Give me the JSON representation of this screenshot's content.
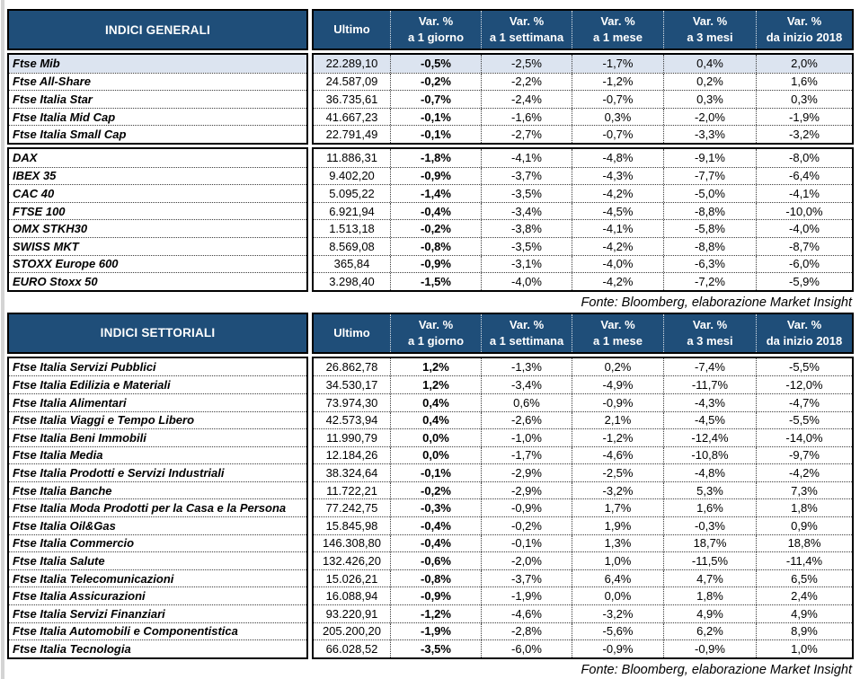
{
  "colors": {
    "header_bg": "#1F4E79",
    "header_text": "#FFFFFF",
    "row_highlight": "#DCE4F0",
    "border": "#000000"
  },
  "columns": [
    {
      "label": "Ultimo"
    },
    {
      "label": "Var. %",
      "sub": "a 1 giorno"
    },
    {
      "label": "Var. %",
      "sub": "a 1 settimana"
    },
    {
      "label": "Var. %",
      "sub": "a 1 mese"
    },
    {
      "label": "Var. %",
      "sub": "a 3 mesi"
    },
    {
      "label": "Var. %",
      "sub": "da inizio 2018"
    }
  ],
  "table1": {
    "title": "INDICI GENERALI",
    "source": "Fonte: Bloomberg, elaborazione Market Insight",
    "highlight_first_row": true,
    "blocks": [
      [
        {
          "name": "Ftse Mib",
          "values": [
            "22.289,10",
            "-0,5%",
            "-2,5%",
            "-1,7%",
            "0,4%",
            "2,0%"
          ]
        },
        {
          "name": "Ftse All-Share",
          "values": [
            "24.587,09",
            "-0,2%",
            "-2,2%",
            "-1,2%",
            "0,2%",
            "1,6%"
          ]
        },
        {
          "name": "Ftse Italia Star",
          "values": [
            "36.735,61",
            "-0,7%",
            "-2,4%",
            "-0,7%",
            "0,3%",
            "0,3%"
          ]
        },
        {
          "name": "Ftse Italia Mid Cap",
          "values": [
            "41.667,23",
            "-0,1%",
            "-1,6%",
            "0,3%",
            "-2,0%",
            "-1,9%"
          ]
        },
        {
          "name": "Ftse Italia Small Cap",
          "values": [
            "22.791,49",
            "-0,1%",
            "-2,7%",
            "-0,7%",
            "-3,3%",
            "-3,2%"
          ]
        }
      ],
      [
        {
          "name": "DAX",
          "values": [
            "11.886,31",
            "-1,8%",
            "-4,1%",
            "-4,8%",
            "-9,1%",
            "-8,0%"
          ]
        },
        {
          "name": "IBEX 35",
          "values": [
            "9.402,20",
            "-0,9%",
            "-3,7%",
            "-4,3%",
            "-7,7%",
            "-6,4%"
          ]
        },
        {
          "name": "CAC 40",
          "values": [
            "5.095,22",
            "-1,4%",
            "-3,5%",
            "-4,2%",
            "-5,0%",
            "-4,1%"
          ]
        },
        {
          "name": "FTSE 100",
          "values": [
            "6.921,94",
            "-0,4%",
            "-3,4%",
            "-4,5%",
            "-8,8%",
            "-10,0%"
          ]
        },
        {
          "name": "OMX STKH30",
          "values": [
            "1.513,18",
            "-0,2%",
            "-3,8%",
            "-4,1%",
            "-5,8%",
            "-4,0%"
          ]
        },
        {
          "name": "SWISS MKT",
          "values": [
            "8.569,08",
            "-0,8%",
            "-3,5%",
            "-4,2%",
            "-8,8%",
            "-8,7%"
          ]
        },
        {
          "name": "STOXX Europe 600",
          "values": [
            "365,84",
            "-0,9%",
            "-3,1%",
            "-4,0%",
            "-6,3%",
            "-6,0%"
          ]
        },
        {
          "name": "EURO Stoxx 50",
          "values": [
            "3.298,40",
            "-1,5%",
            "-4,0%",
            "-4,2%",
            "-7,2%",
            "-5,9%"
          ]
        }
      ]
    ]
  },
  "table2": {
    "title": "INDICI SETTORIALI",
    "source": "Fonte: Bloomberg, elaborazione Market Insight",
    "highlight_first_row": false,
    "blocks": [
      [
        {
          "name": "Ftse Italia Servizi Pubblici",
          "values": [
            "26.862,78",
            "1,2%",
            "-1,3%",
            "0,2%",
            "-7,4%",
            "-5,5%"
          ]
        },
        {
          "name": "Ftse Italia Edilizia e Materiali",
          "values": [
            "34.530,17",
            "1,2%",
            "-3,4%",
            "-4,9%",
            "-11,7%",
            "-12,0%"
          ]
        },
        {
          "name": "Ftse Italia Alimentari",
          "values": [
            "73.974,30",
            "0,4%",
            "0,6%",
            "-0,9%",
            "-4,3%",
            "-4,7%"
          ]
        },
        {
          "name": "Ftse Italia Viaggi e Tempo Libero",
          "values": [
            "42.573,94",
            "0,4%",
            "-2,6%",
            "2,1%",
            "-4,5%",
            "-5,5%"
          ]
        },
        {
          "name": "Ftse Italia Beni Immobili",
          "values": [
            "11.990,79",
            "0,0%",
            "-1,0%",
            "-1,2%",
            "-12,4%",
            "-14,0%"
          ]
        },
        {
          "name": "Ftse Italia Media",
          "values": [
            "12.184,26",
            "0,0%",
            "-1,7%",
            "-4,6%",
            "-10,8%",
            "-9,7%"
          ]
        },
        {
          "name": "Ftse Italia Prodotti e Servizi Industriali",
          "values": [
            "38.324,64",
            "-0,1%",
            "-2,9%",
            "-2,5%",
            "-4,8%",
            "-4,2%"
          ]
        },
        {
          "name": "Ftse Italia Banche",
          "values": [
            "11.722,21",
            "-0,2%",
            "-2,9%",
            "-3,2%",
            "5,3%",
            "7,3%"
          ]
        },
        {
          "name": "Ftse Italia Moda Prodotti per la Casa e la Persona",
          "values": [
            "77.242,75",
            "-0,3%",
            "-0,9%",
            "1,7%",
            "1,6%",
            "1,8%"
          ]
        },
        {
          "name": "Ftse Italia Oil&Gas",
          "values": [
            "15.845,98",
            "-0,4%",
            "-0,2%",
            "1,9%",
            "-0,3%",
            "0,9%"
          ]
        },
        {
          "name": "Ftse Italia Commercio",
          "values": [
            "146.308,80",
            "-0,4%",
            "-0,1%",
            "1,3%",
            "18,7%",
            "18,8%"
          ]
        },
        {
          "name": "Ftse Italia Salute",
          "values": [
            "132.426,20",
            "-0,6%",
            "-2,0%",
            "1,0%",
            "-11,5%",
            "-11,4%"
          ]
        },
        {
          "name": "Ftse Italia Telecomunicazioni",
          "values": [
            "15.026,21",
            "-0,8%",
            "-3,7%",
            "6,4%",
            "4,7%",
            "6,5%"
          ]
        },
        {
          "name": "Ftse Italia Assicurazioni",
          "values": [
            "16.088,94",
            "-0,9%",
            "-1,9%",
            "0,0%",
            "1,8%",
            "2,4%"
          ]
        },
        {
          "name": "Ftse Italia Servizi Finanziari",
          "values": [
            "93.220,91",
            "-1,2%",
            "-4,6%",
            "-3,2%",
            "4,9%",
            "4,9%"
          ]
        },
        {
          "name": "Ftse Italia Automobili e Componentistica",
          "values": [
            "205.200,20",
            "-1,9%",
            "-2,8%",
            "-5,6%",
            "6,2%",
            "8,9%"
          ]
        },
        {
          "name": "Ftse Italia Tecnologia",
          "values": [
            "66.028,52",
            "-3,5%",
            "-6,0%",
            "-0,9%",
            "-0,9%",
            "1,0%"
          ]
        }
      ]
    ]
  }
}
